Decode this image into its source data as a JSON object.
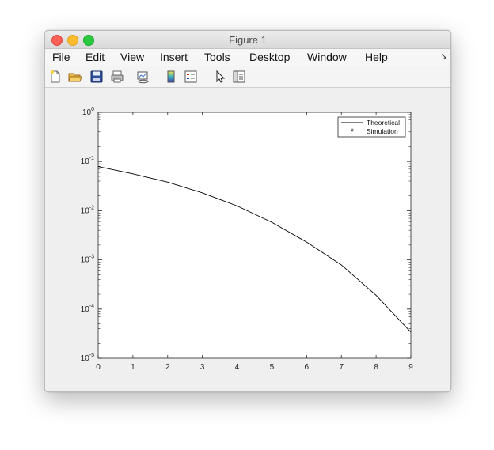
{
  "window": {
    "title": "Figure 1"
  },
  "menu": {
    "items": [
      "File",
      "Edit",
      "View",
      "Insert",
      "Tools",
      "Desktop",
      "Window",
      "Help"
    ],
    "overflow_icon": "dock-arrow-icon"
  },
  "toolbar": {
    "tools": [
      "new-figure-icon",
      "open-file-icon",
      "save-icon",
      "print-icon",
      "link-plot-icon",
      "colorbar-icon",
      "legend-icon",
      "pointer-icon",
      "property-inspector-icon"
    ]
  },
  "chart_data": {
    "type": "line",
    "yscale": "log",
    "xlim": [
      0,
      9
    ],
    "ylim": [
      1e-05,
      1
    ],
    "xticks": [
      "0",
      "1",
      "2",
      "3",
      "4",
      "5",
      "6",
      "7",
      "8",
      "9"
    ],
    "yticks": [
      {
        "base": "10",
        "exp": "0"
      },
      {
        "base": "10",
        "exp": "-1"
      },
      {
        "base": "10",
        "exp": "-2"
      },
      {
        "base": "10",
        "exp": "-3"
      },
      {
        "base": "10",
        "exp": "-4"
      },
      {
        "base": "10",
        "exp": "-5"
      }
    ],
    "legend_position": "top-right",
    "series": [
      {
        "name": "Theoretical",
        "style": "line",
        "color": "#000000",
        "x": [
          0,
          1,
          2,
          3,
          4,
          5,
          6,
          7,
          8,
          9
        ],
        "y": [
          0.079,
          0.056,
          0.038,
          0.023,
          0.0125,
          0.0058,
          0.0023,
          0.00079,
          0.00019,
          3.4e-05
        ]
      },
      {
        "name": "Simulation",
        "style": "marker",
        "marker": "*",
        "color": "#000000",
        "x": [],
        "y": []
      }
    ]
  }
}
